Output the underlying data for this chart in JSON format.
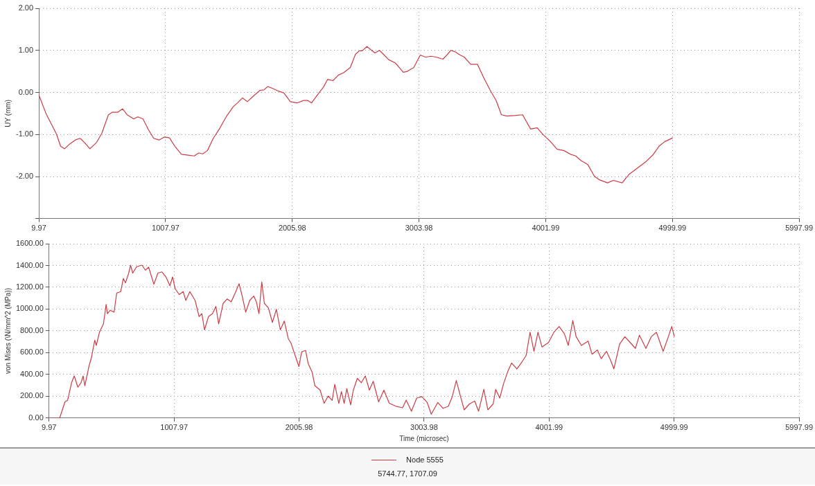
{
  "chart_data": [
    {
      "type": "line",
      "ylabel": "UY (mm)",
      "grid": true,
      "legend": false,
      "marker": "none",
      "line_style": "solid",
      "xlim": [
        9.97,
        5997.99
      ],
      "xticks": [
        9.97,
        1007.97,
        2005.98,
        3003.98,
        4001.99,
        4999.99,
        5997.99
      ],
      "ylim": [
        -3,
        2
      ],
      "yticks": [
        {
          "value": -3,
          "label": null
        },
        {
          "value": -2,
          "label": "-2.00"
        },
        {
          "value": -1,
          "label": "-1.00"
        },
        {
          "value": 0,
          "label": "0.00"
        },
        {
          "value": 1,
          "label": "1.00"
        },
        {
          "value": 2,
          "label": "2.00"
        }
      ],
      "series": [
        {
          "color": "#cc3b44",
          "x": [
            10,
            66,
            150,
            181,
            213,
            255,
            297,
            334,
            370,
            412,
            464,
            506,
            558,
            590,
            632,
            669,
            705,
            757,
            789,
            830,
            872,
            914,
            956,
            998,
            1039,
            1081,
            1133,
            1186,
            1234,
            1269,
            1301,
            1338,
            1384,
            1437,
            1489,
            1541,
            1577,
            1614,
            1652,
            1698,
            1751,
            1782,
            1813,
            1855,
            1897,
            1939,
            1991,
            2043,
            2096,
            2127,
            2158,
            2211,
            2252,
            2284,
            2326,
            2368,
            2410,
            2462,
            2504,
            2535,
            2556,
            2594,
            2619,
            2657,
            2692,
            2723,
            2765,
            2817,
            2849,
            2880,
            2911,
            2943,
            2962,
            3014,
            3056,
            3098,
            3140,
            3192,
            3224,
            3255,
            3286,
            3328,
            3360,
            3412,
            3464,
            3517,
            3569,
            3611,
            3653,
            3695,
            3757,
            3820,
            3883,
            3935,
            3977,
            4040,
            4092,
            4144,
            4197,
            4238,
            4280,
            4332,
            4385,
            4427,
            4489,
            4535,
            4604,
            4657,
            4719,
            4793,
            4845,
            4897,
            4939,
            5002
          ],
          "values": [
            -0.06,
            -0.5,
            -1.0,
            -1.28,
            -1.34,
            -1.22,
            -1.13,
            -1.09,
            -1.19,
            -1.34,
            -1.19,
            -0.97,
            -0.53,
            -0.47,
            -0.47,
            -0.39,
            -0.53,
            -0.63,
            -0.58,
            -0.63,
            -0.88,
            -1.09,
            -1.13,
            -1.06,
            -1.08,
            -1.28,
            -1.47,
            -1.49,
            -1.51,
            -1.44,
            -1.46,
            -1.38,
            -1.09,
            -0.84,
            -0.56,
            -0.34,
            -0.24,
            -0.13,
            -0.22,
            -0.09,
            0.05,
            0.06,
            0.14,
            0.09,
            0.03,
            -0.01,
            -0.22,
            -0.25,
            -0.19,
            -0.19,
            -0.25,
            -0.03,
            0.13,
            0.31,
            0.28,
            0.41,
            0.47,
            0.59,
            0.91,
            0.99,
            0.99,
            1.09,
            1.03,
            0.94,
            1.0,
            0.91,
            0.78,
            0.7,
            0.59,
            0.48,
            0.5,
            0.56,
            0.59,
            0.89,
            0.84,
            0.86,
            0.84,
            0.79,
            0.89,
            1.0,
            0.97,
            0.89,
            0.84,
            0.67,
            0.67,
            0.33,
            0.03,
            -0.19,
            -0.53,
            -0.56,
            -0.55,
            -0.53,
            -0.87,
            -0.84,
            -0.99,
            -1.17,
            -1.35,
            -1.38,
            -1.47,
            -1.51,
            -1.62,
            -1.71,
            -1.99,
            -2.08,
            -2.15,
            -2.09,
            -2.15,
            -1.95,
            -1.81,
            -1.64,
            -1.49,
            -1.27,
            -1.17,
            -1.08
          ]
        }
      ]
    },
    {
      "type": "line",
      "xlabel": "Time (microsec)",
      "ylabel": "von Mises (\\N/mm^2 (MPa))",
      "grid": true,
      "legend": "bottom",
      "marker": "none",
      "line_style": "solid",
      "annotations": [
        "5744.77, 1707.09"
      ],
      "xlim": [
        9.97,
        5997.99
      ],
      "xticks": [
        9.97,
        1007.97,
        2005.98,
        3003.98,
        4001.99,
        4999.99,
        5997.99
      ],
      "ylim": [
        0,
        1600
      ],
      "yticks": [
        {
          "value": 0,
          "label": "0.00"
        },
        {
          "value": 200,
          "label": "200.00"
        },
        {
          "value": 400,
          "label": "400.00"
        },
        {
          "value": 600,
          "label": "600.00"
        },
        {
          "value": 800,
          "label": "800.00"
        },
        {
          "value": 1000,
          "label": "1000.00"
        },
        {
          "value": 1200,
          "label": "1200.00"
        },
        {
          "value": 1400,
          "label": "1400.00"
        },
        {
          "value": 1600,
          "label": "1600.00"
        }
      ],
      "series": [
        {
          "name": "Node 5555",
          "color": "#cc3b44",
          "x": [
            10,
            95,
            137,
            158,
            190,
            211,
            240,
            265,
            282,
            296,
            328,
            349,
            375,
            387,
            413,
            444,
            466,
            476,
            498,
            529,
            550,
            582,
            603,
            620,
            646,
            661,
            678,
            709,
            752,
            779,
            805,
            847,
            879,
            911,
            943,
            975,
            996,
            1017,
            1049,
            1081,
            1102,
            1134,
            1176,
            1208,
            1230,
            1251,
            1283,
            1315,
            1342,
            1364,
            1400,
            1432,
            1464,
            1496,
            1527,
            1549,
            1580,
            1612,
            1644,
            1665,
            1686,
            1708,
            1729,
            1761,
            1793,
            1825,
            1856,
            1888,
            1920,
            1941,
            1973,
            2005,
            2026,
            2058,
            2079,
            2111,
            2132,
            2174,
            2206,
            2238,
            2270,
            2291,
            2323,
            2344,
            2366,
            2387,
            2418,
            2439,
            2471,
            2503,
            2535,
            2567,
            2598,
            2641,
            2683,
            2726,
            2779,
            2832,
            2861,
            2903,
            2945,
            2987,
            3029,
            3061,
            3113,
            3155,
            3197,
            3229,
            3261,
            3292,
            3324,
            3366,
            3408,
            3439,
            3481,
            3513,
            3555,
            3576,
            3608,
            3639,
            3671,
            3703,
            3745,
            3787,
            3818,
            3850,
            3881,
            3913,
            3945,
            3997,
            4040,
            4082,
            4124,
            4155,
            4191,
            4218,
            4260,
            4313,
            4345,
            4387,
            4418,
            4460,
            4492,
            4519,
            4565,
            4607,
            4649,
            4691,
            4723,
            4775,
            4817,
            4859,
            4912,
            4954,
            4981,
            5002
          ],
          "values": [
            0,
            0,
            148,
            162,
            324,
            386,
            283,
            324,
            386,
            297,
            472,
            558,
            715,
            666,
            790,
            863,
            1044,
            958,
            990,
            971,
            1147,
            1160,
            1281,
            1241,
            1330,
            1403,
            1330,
            1389,
            1403,
            1357,
            1384,
            1228,
            1330,
            1341,
            1295,
            1214,
            1295,
            1187,
            1133,
            1160,
            1079,
            1160,
            1079,
            931,
            958,
            809,
            931,
            958,
            1025,
            863,
            1052,
            1093,
            1066,
            1147,
            1233,
            1133,
            971,
            1079,
            1120,
            1066,
            958,
            1249,
            1052,
            1012,
            877,
            998,
            809,
            890,
            728,
            688,
            580,
            472,
            607,
            620,
            499,
            418,
            297,
            256,
            135,
            202,
            162,
            310,
            135,
            243,
            135,
            270,
            121,
            256,
            364,
            324,
            386,
            256,
            337,
            148,
            256,
            135,
            108,
            94,
            164,
            62,
            183,
            196,
            142,
            35,
            142,
            89,
            107,
            196,
            344,
            209,
            75,
            129,
            156,
            62,
            263,
            75,
            129,
            263,
            183,
            317,
            424,
            505,
            451,
            518,
            572,
            787,
            612,
            787,
            652,
            693,
            787,
            840,
            773,
            666,
            894,
            746,
            666,
            706,
            585,
            625,
            545,
            612,
            532,
            451,
            679,
            746,
            693,
            639,
            760,
            639,
            746,
            787,
            612,
            746,
            840,
            746
          ]
        }
      ]
    }
  ]
}
